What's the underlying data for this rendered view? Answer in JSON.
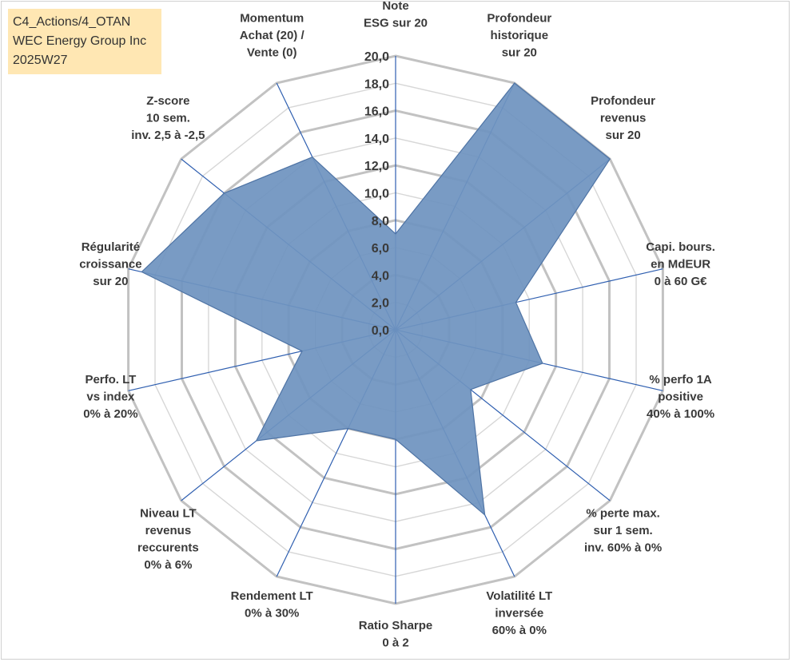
{
  "title_box": {
    "line1": "C4_Actions/4_OTAN",
    "line2": "WEC Energy Group Inc",
    "line3": "2025W27"
  },
  "colors": {
    "fill": "#6f93bf",
    "stroke": "#4f74a5",
    "spoke": "#2f5fb0",
    "grid_outer": "#c2c2c2",
    "grid_inner": "#d7d7d7",
    "title_bg": "#ffe7b3"
  },
  "chart_data": {
    "type": "radar",
    "r_range": [
      0,
      20
    ],
    "tick_step": 2,
    "tick_labels": [
      "0,0",
      "2,0",
      "4,0",
      "6,0",
      "8,0",
      "10,0",
      "12,0",
      "14,0",
      "16,0",
      "18,0",
      "20,0"
    ],
    "grid": true,
    "axes": [
      {
        "label": [
          "Note",
          "ESG sur 20"
        ],
        "value": 7
      },
      {
        "label": [
          "Profondeur",
          "historique",
          "sur 20"
        ],
        "value": 20
      },
      {
        "label": [
          "Profondeur",
          "revenus",
          "sur 20"
        ],
        "value": 20
      },
      {
        "label": [
          "Capi. bours.",
          "en MdEUR",
          "0 à 60 G€"
        ],
        "value": 9
      },
      {
        "label": [
          "% perfo 1A",
          "positive",
          "40% à 100%"
        ],
        "value": 11
      },
      {
        "label": [
          "% perte max.",
          "sur 1 sem.",
          "inv. 60% à 0%"
        ],
        "value": 7
      },
      {
        "label": [
          "Volatilité LT",
          "inversée",
          "60% à 0%"
        ],
        "value": 15
      },
      {
        "label": [
          "Ratio Sharpe",
          "0 à 2"
        ],
        "value": 8
      },
      {
        "label": [
          "Rendement LT",
          "0% à 30%"
        ],
        "value": 8
      },
      {
        "label": [
          "Niveau LT",
          "revenus",
          "reccurents",
          "0% à 6%"
        ],
        "value": 13
      },
      {
        "label": [
          "Perfo. LT",
          "vs index",
          "0% à 20%"
        ],
        "value": 7
      },
      {
        "label": [
          "Régularité",
          "croissance",
          "sur 20"
        ],
        "value": 19
      },
      {
        "label": [
          "Z-score",
          "10 sem.",
          "inv. 2,5 à -2,5"
        ],
        "value": 16
      },
      {
        "label": [
          "Momentum",
          "Achat (20) /",
          "Vente (0)"
        ],
        "value": 14
      }
    ]
  }
}
